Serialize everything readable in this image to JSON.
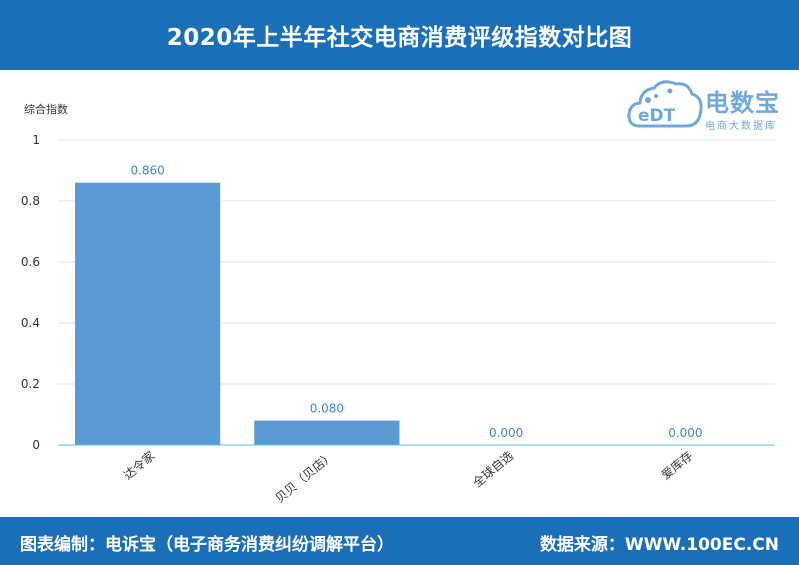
{
  "header": {
    "title": "2020年上半年社交电商消费评级指数对比图"
  },
  "footer": {
    "left": "图表编制：电诉宝（电子商务消费纠纷调解平台）",
    "right": "数据来源：WWW.100EC.CN"
  },
  "logo": {
    "text": "电数宝",
    "subtext": "电商大数据库",
    "mark": "eDT"
  },
  "colors": {
    "header_bg": "#1a6fb8",
    "bar": "#5b9bd5",
    "label": "#4a86c6",
    "axis": "#5bc0de"
  },
  "chart_data": {
    "type": "bar",
    "ylabel": "综合指数",
    "ylim": [
      0,
      1
    ],
    "yticks": [
      "0",
      "0.2",
      "0.4",
      "0.6",
      "0.8",
      "1"
    ],
    "categories": [
      "达令家",
      "贝贝（贝店）",
      "全球自选",
      "爱库存"
    ],
    "values": [
      0.86,
      0.08,
      0.0,
      0.0
    ],
    "value_labels": [
      "0.860",
      "0.080",
      "0.000",
      "0.000"
    ]
  }
}
